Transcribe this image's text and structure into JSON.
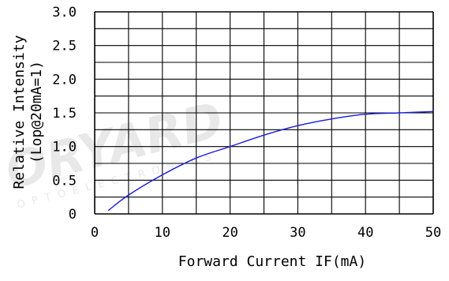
{
  "chart_data": {
    "type": "line",
    "title": "",
    "xlabel": "Forward Current IF(mA)",
    "ylabel_line1": "Relative Intensity",
    "ylabel_line2": "(Lop@20mA=1)",
    "xlim": [
      0,
      50
    ],
    "ylim": [
      0,
      3.0
    ],
    "x_ticks": [
      "0",
      "10",
      "20",
      "30",
      "40",
      "50"
    ],
    "y_ticks": [
      "0",
      "0.5",
      "1.0",
      "1.5",
      "2.0",
      "2.5",
      "3.0"
    ],
    "grid": true,
    "series": [
      {
        "color": "#1a1adb",
        "x": [
          2,
          5,
          10,
          15,
          20,
          25,
          30,
          35,
          40,
          45,
          50
        ],
        "y": [
          0.05,
          0.28,
          0.58,
          0.83,
          1.0,
          1.17,
          1.31,
          1.41,
          1.48,
          1.5,
          1.52
        ]
      }
    ]
  },
  "watermark": {
    "brand": "ORYARD",
    "sub": "OPTOELECTRONICS"
  }
}
